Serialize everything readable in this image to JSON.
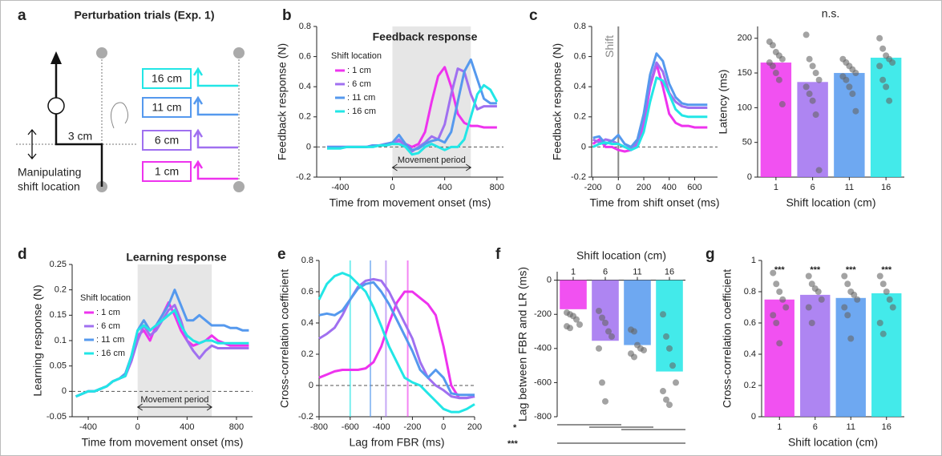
{
  "diagram": {
    "panel": "a",
    "title": "Perturbation trials (Exp. 1)",
    "distance": "3 cm",
    "caption": [
      "Manipulating",
      "shift location"
    ],
    "boxes": [
      "16 cm",
      "11 cm",
      "6 cm",
      "1 cm"
    ]
  },
  "chart_data": [
    {
      "type": "line",
      "panel": "b",
      "title": "Feedback response",
      "x_label": "Time from movement onset (ms)",
      "y_label": "Feedback response (N)",
      "xlim": [
        -580,
        850
      ],
      "xticks": [
        -400,
        0,
        400,
        800
      ],
      "ylim": [
        -0.2,
        0.8
      ],
      "yticks": [
        -0.2,
        0,
        0.2,
        0.4,
        0.6,
        0.8
      ],
      "shaded": {
        "xlim": [
          0,
          600
        ],
        "label": "Movement period"
      },
      "legend_title": "Shift location",
      "x": [
        -500,
        -450,
        -400,
        -350,
        -300,
        -250,
        -200,
        -150,
        -100,
        -50,
        0,
        50,
        100,
        150,
        200,
        250,
        300,
        350,
        400,
        450,
        500,
        550,
        600,
        650,
        700,
        750,
        800
      ],
      "series": [
        {
          "name": ": 1 cm",
          "color": "#ee33ee",
          "values": [
            0,
            0,
            0,
            0,
            0,
            0,
            0,
            0.01,
            0.01,
            0.02,
            0.03,
            0.04,
            0.02,
            0,
            0.02,
            0.1,
            0.3,
            0.47,
            0.53,
            0.4,
            0.22,
            0.16,
            0.14,
            0.14,
            0.13,
            0.13,
            0.13
          ]
        },
        {
          "name": ": 6 cm",
          "color": "#a070f0",
          "values": [
            0,
            0,
            0,
            0,
            0,
            0,
            0,
            0.01,
            0.01,
            0.01,
            0.02,
            0.05,
            0,
            -0.03,
            0,
            0.03,
            0.07,
            0.05,
            0.15,
            0.35,
            0.52,
            0.5,
            0.35,
            0.25,
            0.27,
            0.27,
            0.27
          ]
        },
        {
          "name": ": 11 cm",
          "color": "#5599ee",
          "values": [
            0,
            0,
            0,
            0,
            0,
            0,
            0,
            0.01,
            0.01,
            0.02,
            0.03,
            0.08,
            0.02,
            -0.02,
            -0.01,
            0.02,
            0.04,
            0.05,
            0.03,
            0.1,
            0.3,
            0.5,
            0.58,
            0.45,
            0.32,
            0.29,
            0.29
          ]
        },
        {
          "name": ": 16 cm",
          "color": "#22e6e6",
          "values": [
            -0.01,
            -0.01,
            -0.01,
            0,
            0,
            0,
            0,
            0,
            0.01,
            0.01,
            0.02,
            0.02,
            0,
            -0.05,
            -0.04,
            0,
            0.02,
            0,
            -0.02,
            0,
            0,
            0.05,
            0.2,
            0.35,
            0.41,
            0.38,
            0.3
          ]
        }
      ]
    },
    {
      "type": "line",
      "panel": "c",
      "x_label": "Time from shift onset (ms)",
      "y_label": "Feedback response (N)",
      "xlim": [
        -210,
        780
      ],
      "xticks": [
        -200,
        0,
        200,
        400,
        600
      ],
      "ylim": [
        -0.2,
        0.8
      ],
      "yticks": [
        -0.2,
        0,
        0.2,
        0.4,
        0.6,
        0.8
      ],
      "vline": {
        "x": 0,
        "label": "Shift"
      },
      "x": [
        -200,
        -150,
        -100,
        -50,
        0,
        50,
        100,
        150,
        200,
        250,
        300,
        350,
        400,
        450,
        500,
        550,
        600,
        650,
        700
      ],
      "series": [
        {
          "name": "1 cm",
          "color": "#ee33ee",
          "values": [
            0.02,
            0.05,
            0,
            0,
            -0.02,
            -0.03,
            -0.02,
            0.02,
            0.15,
            0.4,
            0.55,
            0.4,
            0.22,
            0.16,
            0.14,
            0.14,
            0.13,
            0.13,
            0.13
          ]
        },
        {
          "name": "6 cm",
          "color": "#a070f0",
          "values": [
            0.05,
            0.03,
            0.05,
            0.04,
            0.02,
            0,
            -0.01,
            0.03,
            0.2,
            0.42,
            0.56,
            0.5,
            0.36,
            0.3,
            0.27,
            0.26,
            0.26,
            0.26,
            0.26
          ]
        },
        {
          "name": "11 cm",
          "color": "#5599ee",
          "values": [
            0.06,
            0.07,
            0.02,
            0.04,
            0.08,
            0.02,
            0,
            0.05,
            0.22,
            0.48,
            0.62,
            0.57,
            0.42,
            0.33,
            0.29,
            0.28,
            0.28,
            0.28,
            0.28
          ]
        },
        {
          "name": "16 cm",
          "color": "#22e6e6",
          "values": [
            0,
            0.02,
            0.03,
            0.02,
            0.02,
            0,
            -0.02,
            0,
            0.1,
            0.3,
            0.46,
            0.44,
            0.35,
            0.25,
            0.21,
            0.2,
            0.2,
            0.2,
            0.2
          ]
        }
      ]
    },
    {
      "type": "bar",
      "title": "n.s.",
      "x_label": "Shift location (cm)",
      "y_label": "Latency (ms)",
      "categories": [
        "1",
        "6",
        "11",
        "16"
      ],
      "values": [
        165,
        137,
        150,
        172
      ],
      "colors": [
        "#ee33ee",
        "#a070f0",
        "#5599ee",
        "#22e6e6"
      ],
      "ylim": [
        0,
        217
      ],
      "yticks": [
        0,
        50,
        100,
        150,
        200
      ],
      "points": [
        [
          195,
          190,
          180,
          175,
          170,
          165,
          160,
          150,
          140,
          105
        ],
        [
          205,
          170,
          160,
          150,
          140,
          130,
          120,
          110,
          90,
          10
        ],
        [
          170,
          165,
          160,
          155,
          150,
          145,
          140,
          130,
          120,
          95
        ],
        [
          200,
          185,
          175,
          170,
          165,
          160,
          140,
          130,
          110
        ]
      ]
    },
    {
      "type": "line",
      "panel": "d",
      "title": "Learning response",
      "x_label": "Time from movement onset (ms)",
      "y_label": "Learning response (N)",
      "xlim": [
        -530,
        930
      ],
      "xticks": [
        -400,
        0,
        400,
        800
      ],
      "ylim": [
        -0.05,
        0.25
      ],
      "yticks": [
        -0.05,
        0,
        0.05,
        0.1,
        0.15,
        0.2,
        0.25
      ],
      "shaded": {
        "xlim": [
          0,
          600
        ],
        "label": "Movement period"
      },
      "legend_title": "Shift location",
      "x": [
        -500,
        -450,
        -400,
        -350,
        -300,
        -250,
        -200,
        -150,
        -100,
        -50,
        0,
        50,
        100,
        150,
        200,
        250,
        300,
        350,
        400,
        450,
        500,
        550,
        600,
        650,
        700,
        750,
        800,
        850,
        900
      ],
      "series": [
        {
          "name": ": 1 cm",
          "color": "#ee33ee",
          "values": [
            -0.01,
            -0.005,
            0,
            0,
            0.005,
            0.01,
            0.02,
            0.025,
            0.03,
            0.06,
            0.11,
            0.12,
            0.1,
            0.13,
            0.15,
            0.175,
            0.15,
            0.12,
            0.1,
            0.09,
            0.095,
            0.1,
            0.11,
            0.1,
            0.095,
            0.09,
            0.09,
            0.09,
            0.09
          ]
        },
        {
          "name": ": 6 cm",
          "color": "#a070f0",
          "values": [
            -0.01,
            -0.005,
            0,
            0,
            0.005,
            0.01,
            0.02,
            0.025,
            0.03,
            0.06,
            0.1,
            0.13,
            0.11,
            0.12,
            0.14,
            0.16,
            0.17,
            0.14,
            0.1,
            0.08,
            0.065,
            0.08,
            0.09,
            0.085,
            0.085,
            0.085,
            0.085,
            0.085,
            0.085
          ]
        },
        {
          "name": ": 11 cm",
          "color": "#5599ee",
          "values": [
            -0.01,
            -0.005,
            0,
            0,
            0.005,
            0.01,
            0.02,
            0.025,
            0.035,
            0.07,
            0.12,
            0.14,
            0.12,
            0.13,
            0.15,
            0.17,
            0.2,
            0.17,
            0.14,
            0.14,
            0.15,
            0.14,
            0.13,
            0.13,
            0.13,
            0.125,
            0.125,
            0.12,
            0.12
          ]
        },
        {
          "name": ": 16 cm",
          "color": "#22e6e6",
          "values": [
            -0.01,
            -0.005,
            0,
            0,
            0.005,
            0.01,
            0.02,
            0.025,
            0.03,
            0.07,
            0.12,
            0.13,
            0.12,
            0.13,
            0.14,
            0.15,
            0.16,
            0.13,
            0.11,
            0.1,
            0.095,
            0.1,
            0.1,
            0.095,
            0.095,
            0.095,
            0.095,
            0.095,
            0.095
          ]
        }
      ]
    },
    {
      "type": "line",
      "panel": "e",
      "x_label": "Lag from FBR (ms)",
      "y_label": "Cross-correlation coefficient",
      "xlim": [
        -800,
        200
      ],
      "xticks": [
        -800,
        -600,
        -400,
        -200,
        0,
        200
      ],
      "ylim": [
        -0.2,
        0.8
      ],
      "yticks": [
        -0.2,
        0,
        0.2,
        0.4,
        0.6,
        0.8
      ],
      "vlines": [
        -230,
        -370,
        -470,
        -600
      ],
      "x": [
        -800,
        -750,
        -700,
        -650,
        -600,
        -550,
        -500,
        -450,
        -400,
        -350,
        -300,
        -250,
        -200,
        -150,
        -100,
        -50,
        0,
        50,
        100,
        150,
        200
      ],
      "series": [
        {
          "name": "1 cm",
          "color": "#ee33ee",
          "values": [
            0.05,
            0.07,
            0.09,
            0.1,
            0.1,
            0.1,
            0.11,
            0.15,
            0.25,
            0.4,
            0.53,
            0.6,
            0.6,
            0.56,
            0.52,
            0.45,
            0.25,
            0,
            -0.08,
            -0.08,
            -0.07
          ]
        },
        {
          "name": "6 cm",
          "color": "#a070f0",
          "values": [
            0.3,
            0.33,
            0.37,
            0.45,
            0.55,
            0.63,
            0.67,
            0.68,
            0.67,
            0.6,
            0.5,
            0.4,
            0.3,
            0.15,
            0.05,
            0,
            -0.03,
            -0.07,
            -0.08,
            -0.08,
            -0.07
          ]
        },
        {
          "name": "11 cm",
          "color": "#5599ee",
          "values": [
            0.45,
            0.46,
            0.45,
            0.48,
            0.55,
            0.62,
            0.65,
            0.66,
            0.6,
            0.52,
            0.42,
            0.32,
            0.22,
            0.1,
            0.05,
            0.1,
            0.05,
            -0.05,
            -0.06,
            -0.06,
            -0.06
          ]
        },
        {
          "name": "16 cm",
          "color": "#22e6e6",
          "values": [
            0.55,
            0.65,
            0.7,
            0.72,
            0.7,
            0.65,
            0.6,
            0.5,
            0.38,
            0.25,
            0.15,
            0.05,
            0.02,
            0,
            -0.05,
            -0.1,
            -0.15,
            -0.17,
            -0.17,
            -0.15,
            -0.12
          ]
        }
      ]
    },
    {
      "type": "bar",
      "panel": "f",
      "title": "Shift location (cm)",
      "y_label": "Lag between FBR and LR (ms)",
      "categories_on_top": true,
      "categories": [
        "1",
        "6",
        "11",
        "16"
      ],
      "values": [
        -170,
        -355,
        -380,
        -535
      ],
      "colors": [
        "#ee33ee",
        "#a070f0",
        "#5599ee",
        "#22e6e6"
      ],
      "ylim": [
        -800,
        50
      ],
      "yticks": [
        -800,
        -600,
        -400,
        -200,
        0
      ],
      "annotations": [
        "*",
        "***"
      ],
      "points": [
        [
          -190,
          -200,
          -210,
          -230,
          -260,
          -270,
          -280
        ],
        [
          -180,
          -220,
          -250,
          -300,
          -330,
          -400,
          -600,
          -710
        ],
        [
          -290,
          -300,
          -380,
          -400,
          -410,
          -430,
          -450
        ],
        [
          -200,
          -330,
          -400,
          -500,
          -600,
          -650,
          -700,
          -730
        ]
      ]
    },
    {
      "type": "bar",
      "panel": "g",
      "x_label": "Shift location (cm)",
      "y_label": "Cross-correlation coefficient",
      "categories": [
        "1",
        "6",
        "11",
        "16"
      ],
      "values": [
        0.75,
        0.78,
        0.76,
        0.79
      ],
      "colors": [
        "#ee33ee",
        "#a070f0",
        "#5599ee",
        "#22e6e6"
      ],
      "ylim": [
        0,
        1
      ],
      "yticks": [
        0,
        0.2,
        0.4,
        0.6,
        0.8,
        1
      ],
      "bar_annotations": [
        "***",
        "***",
        "***",
        "***"
      ],
      "points": [
        [
          0.92,
          0.85,
          0.8,
          0.75,
          0.7,
          0.65,
          0.6,
          0.47
        ],
        [
          0.9,
          0.85,
          0.82,
          0.8,
          0.75,
          0.7,
          0.6
        ],
        [
          0.9,
          0.85,
          0.8,
          0.78,
          0.75,
          0.7,
          0.65,
          0.5
        ],
        [
          0.9,
          0.85,
          0.8,
          0.75,
          0.7,
          0.6,
          0.53
        ]
      ]
    }
  ]
}
